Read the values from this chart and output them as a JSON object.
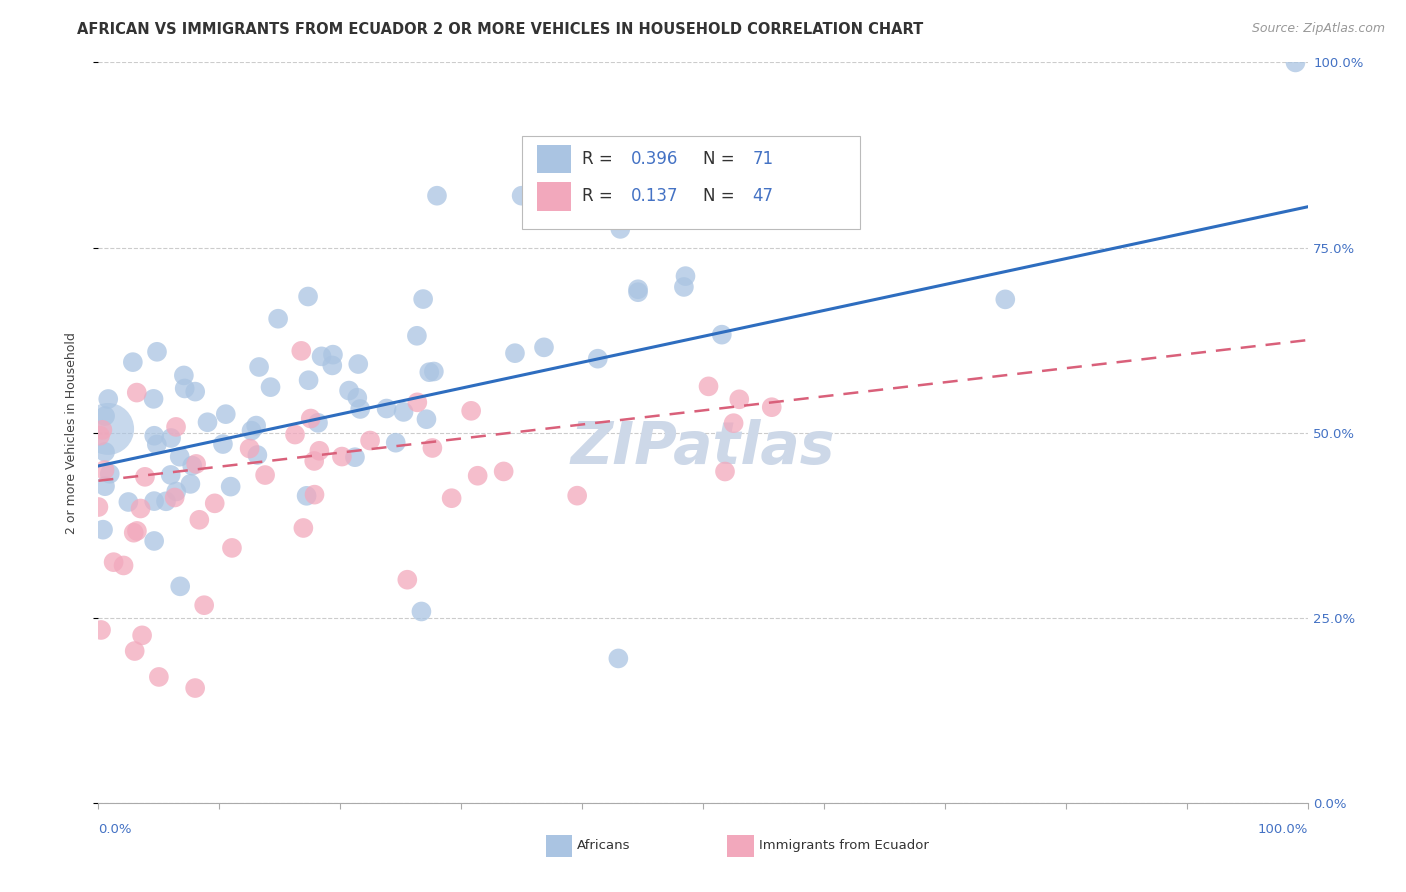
{
  "title": "AFRICAN VS IMMIGRANTS FROM ECUADOR 2 OR MORE VEHICLES IN HOUSEHOLD CORRELATION CHART",
  "source": "Source: ZipAtlas.com",
  "ylabel": "2 or more Vehicles in Household",
  "ytick_labels": [
    "0.0%",
    "25.0%",
    "50.0%",
    "75.0%",
    "100.0%"
  ],
  "ytick_vals": [
    0.0,
    0.25,
    0.5,
    0.75,
    1.0
  ],
  "watermark": "ZIPatlas",
  "blue_color": "#aac4e2",
  "pink_color": "#f2a8bc",
  "line_blue": "#2e6dbf",
  "line_pink": "#d9607a",
  "xlim": [
    0.0,
    1.0
  ],
  "ylim": [
    0.0,
    1.0
  ],
  "grid_color": "#cccccc",
  "background_color": "#ffffff",
  "title_fontsize": 10.5,
  "source_fontsize": 9,
  "axis_label_fontsize": 9,
  "tick_fontsize": 9.5,
  "legend_fontsize": 12,
  "watermark_fontsize": 42,
  "watermark_color": "#cdd8e8",
  "blue_line_y0": 0.455,
  "blue_line_y1": 0.805,
  "pink_line_y0": 0.435,
  "pink_line_y1": 0.625,
  "legend_R_blue": "0.396",
  "legend_N_blue": "71",
  "legend_R_pink": "0.137",
  "legend_N_pink": "47"
}
